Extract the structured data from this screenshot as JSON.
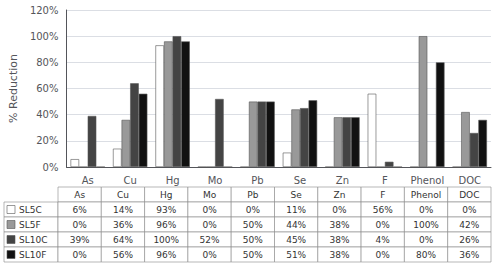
{
  "chart_data": {
    "type": "bar",
    "ylabel": "% Reduction",
    "categories": [
      "As",
      "Cu",
      "Hg",
      "Mo",
      "Pb",
      "Se",
      "Zn",
      "F",
      "Phenol",
      "DOC"
    ],
    "series": [
      {
        "name": "SL5C",
        "color": "#ffffff",
        "values": [
          6,
          14,
          93,
          0,
          0,
          11,
          0,
          56,
          0,
          0
        ],
        "value_labels": [
          "6%",
          "14%",
          "93%",
          "0%",
          "0%",
          "11%",
          "0%",
          "56%",
          "0%",
          "0%"
        ]
      },
      {
        "name": "SL5F",
        "color": "#999999",
        "values": [
          0,
          36,
          96,
          0,
          50,
          44,
          38,
          0,
          100,
          42
        ],
        "value_labels": [
          "0%",
          "36%",
          "96%",
          "0%",
          "50%",
          "44%",
          "38%",
          "0%",
          "100%",
          "42%"
        ]
      },
      {
        "name": "SL10C",
        "color": "#444444",
        "values": [
          39,
          64,
          100,
          52,
          50,
          45,
          38,
          4,
          0,
          26
        ],
        "value_labels": [
          "39%",
          "64%",
          "100%",
          "52%",
          "50%",
          "45%",
          "38%",
          "4%",
          "0%",
          "26%"
        ]
      },
      {
        "name": "SL10F",
        "color": "#111111",
        "values": [
          0,
          56,
          96,
          0,
          50,
          51,
          38,
          0,
          80,
          36
        ],
        "value_labels": [
          "0%",
          "56%",
          "96%",
          "0%",
          "50%",
          "51%",
          "38%",
          "0%",
          "80%",
          "36%"
        ]
      }
    ],
    "ylim": [
      0,
      120
    ],
    "yticks": [
      {
        "value": 0,
        "label": "0%"
      },
      {
        "value": 20,
        "label": "20%"
      },
      {
        "value": 40,
        "label": "40%"
      },
      {
        "value": 60,
        "label": "60%"
      },
      {
        "value": 80,
        "label": "80%"
      },
      {
        "value": 100,
        "label": "100%"
      },
      {
        "value": 120,
        "label": "120%"
      }
    ],
    "grid": true
  }
}
